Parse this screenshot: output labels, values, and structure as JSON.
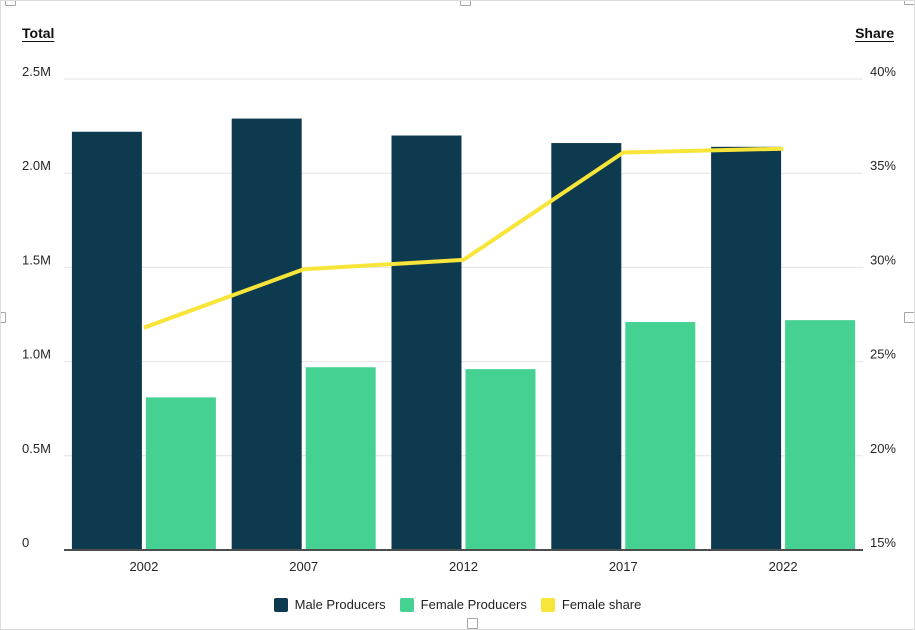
{
  "chart_data": {
    "type": "combo-bar-line",
    "categories": [
      "2002",
      "2007",
      "2012",
      "2017",
      "2022"
    ],
    "series": [
      {
        "name": "Male Producers",
        "type": "bar",
        "axis": "left",
        "color": "#0d3a4e",
        "unit": "M",
        "values": [
          2.22,
          2.29,
          2.2,
          2.16,
          2.14
        ]
      },
      {
        "name": "Female Producers",
        "type": "bar",
        "axis": "left",
        "color": "#45d192",
        "unit": "M",
        "values": [
          0.81,
          0.97,
          0.96,
          1.21,
          1.22
        ]
      },
      {
        "name": "Female share",
        "type": "line",
        "axis": "right",
        "color": "#f8e53a",
        "unit": "%",
        "values": [
          26.8,
          29.9,
          30.4,
          36.1,
          36.3
        ]
      }
    ],
    "axes": {
      "left": {
        "title": "Total",
        "min": 0,
        "max": 2.5,
        "unit": "M",
        "tick_labels": [
          "2.5M",
          "2.0M",
          "1.5M",
          "1.0M",
          "0.5M",
          "0"
        ],
        "tick_values": [
          2.5,
          2.0,
          1.5,
          1.0,
          0.5,
          0
        ]
      },
      "right": {
        "title": "Share",
        "min": 15,
        "max": 40,
        "unit": "%",
        "tick_labels": [
          "40%",
          "35%",
          "30%",
          "25%",
          "20%",
          "15%"
        ],
        "tick_values": [
          40,
          35,
          30,
          25,
          20,
          15
        ]
      }
    },
    "legend": {
      "position": "bottom",
      "items": [
        "Male Producers",
        "Female Producers",
        "Female share"
      ]
    },
    "grid": true
  },
  "colors": {
    "gridline": "#e4e4e4",
    "axis_line": "#4d4d4d",
    "text": "#262626",
    "background": "#ffffff"
  }
}
